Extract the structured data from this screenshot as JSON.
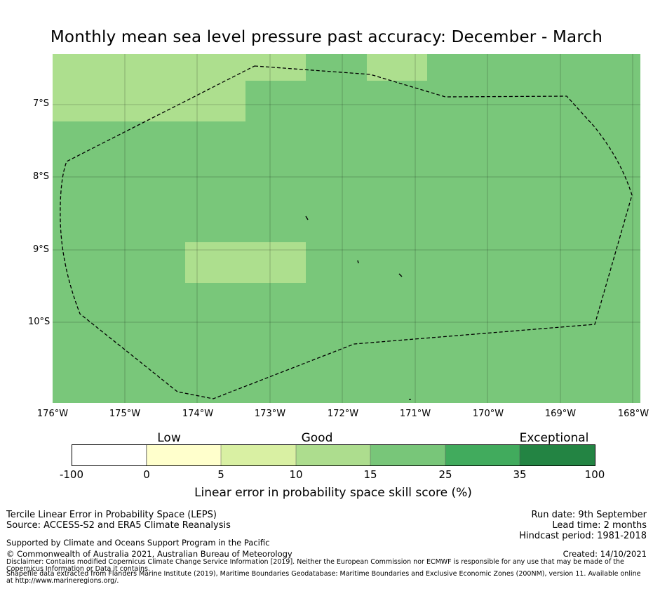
{
  "title": "Monthly mean sea level pressure past accuracy: December - March",
  "map": {
    "colors": {
      "background_band": "#79c77a",
      "lighter_band": "#addf8e",
      "eez_line": "#000000"
    },
    "y_axis_labels": [
      "7°S",
      "8°S",
      "9°S",
      "10°S"
    ],
    "x_axis_labels": [
      "176°W",
      "175°W",
      "174°W",
      "173°W",
      "172°W",
      "171°W",
      "170°W",
      "169°W",
      "168°W"
    ]
  },
  "colorbar": {
    "category_labels": [
      "Low",
      "Good",
      "Exceptional"
    ],
    "ticks": [
      "-100",
      "0",
      "5",
      "10",
      "15",
      "25",
      "35",
      "100"
    ],
    "colors": [
      "#ffffff",
      "#ffffcc",
      "#d9f0a3",
      "#addd8e",
      "#78c679",
      "#41ab5d",
      "#238443"
    ],
    "title": "Linear error in probability space skill score (%)"
  },
  "footer": {
    "left_line1": "Tercile Linear Error in Probability Space (LEPS)",
    "left_line2": "Source: ACCESS-S2 and ERA5 Climate Reanalysis",
    "right_line1": "Run date: 9th September",
    "right_line2": "Lead time: 2 months",
    "right_line3": "Hindcast period: 1981-2018",
    "supported": "Supported by Climate and Oceans Support Program in the Pacific",
    "copyright": "© Commonwealth of Australia 2021, Australian Bureau of Meteorology",
    "created": "Created: 14/10/2021",
    "disclaimer": "Disclaimer: Contains modified Copernicus Climate Change Service Information [2019]. Neither the European Commission nor ECMWF is responsible for any use that may be made of the Copernicus Information or Data it contains.",
    "shapefile": "Shapefile data extracted from Flanders Marine Institute (2019), Maritime Boundaries Geodatabase: Maritime Boundaries and Exclusive Economic Zones (200NM), version 11. Available online at http://www.marineregions.org/."
  }
}
